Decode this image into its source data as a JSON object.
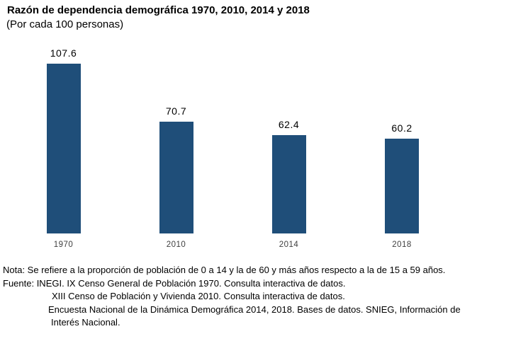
{
  "header": {
    "title": "Razón de dependencia demográfica 1970, 2010, 2014 y 2018",
    "subtitle": "(Por cada 100 personas)"
  },
  "chart_data": {
    "type": "bar",
    "title": "Razón de dependencia demográfica 1970, 2010, 2014 y 2018",
    "subtitle": "(Por cada 100 personas)",
    "categories": [
      "1970",
      "2010",
      "2014",
      "2018"
    ],
    "values": [
      107.6,
      70.7,
      62.4,
      60.2
    ],
    "value_labels": [
      "107.6",
      "70.7",
      "62.4",
      "60.2"
    ],
    "bar_color": "#1F4E79",
    "value_label_color": "#000000",
    "category_label_color": "#3F3F3F",
    "xlabel": "",
    "ylabel": "",
    "ylim": [
      0,
      115
    ],
    "grid": false,
    "legend": false,
    "axis_lines": false
  },
  "footnotes": {
    "lines": [
      "Nota: Se refiere a la proporción de población de 0 a 14 y la de 60 y más años respecto a la de 15 a 59 años.",
      "Fuente: INEGI. IX Censo General de Población 1970. Consulta interactiva de datos.",
      "XIII Censo de Población y Vivienda 2010. Consulta interactiva de datos.",
      "Encuesta Nacional de la Dinámica Demográfica 2014, 2018. Bases de datos. SNIEG, Información de",
      "Interés Nacional."
    ]
  }
}
